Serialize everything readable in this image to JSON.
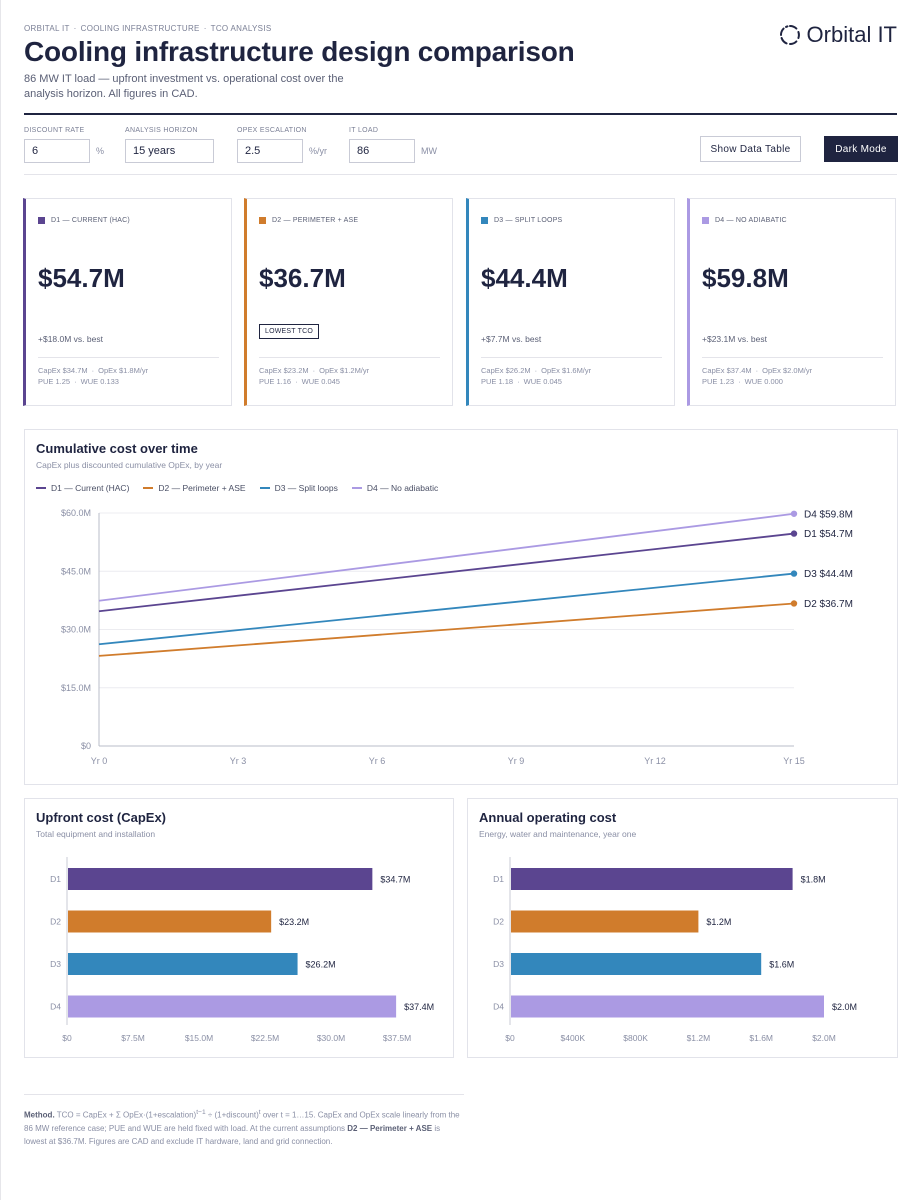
{
  "breadcrumb": [
    "ORBITAL IT",
    "COOLING INFRASTRUCTURE",
    "TCO ANALYSIS"
  ],
  "brand": {
    "name": "Orbital IT",
    "icon": "orbit-ring-icon"
  },
  "title": "Cooling infrastructure design comparison",
  "subtitle": "86 MW IT load — upfront investment vs. operational cost over the analysis horizon. All figures in CAD.",
  "controls": {
    "discount": {
      "label": "DISCOUNT RATE",
      "value": "6",
      "unit": "%"
    },
    "horizon": {
      "label": "ANALYSIS HORIZON",
      "value": "15 years",
      "unit": ""
    },
    "escalation": {
      "label": "OPEX ESCALATION",
      "value": "2.5",
      "unit": "%/yr"
    },
    "load": {
      "label": "IT LOAD",
      "value": "86",
      "unit": "MW"
    }
  },
  "buttons": {
    "data_table": "Show Data Table",
    "dark_mode": "Dark Mode"
  },
  "colors": {
    "d1": "#5b4590",
    "d2": "#d07c2c",
    "d3": "#3387bc",
    "d4": "#ab9ae3"
  },
  "cards": [
    {
      "label": "D1 — CURRENT (HAC)",
      "value": "$54.7M",
      "delta": "+$18.0M vs. best",
      "badge": "",
      "capex": "CapEx $34.7M",
      "opex": "OpEx $1.8M/yr",
      "pue": "PUE 1.25",
      "wue": "WUE 0.133"
    },
    {
      "label": "D2 — PERIMETER + ASE",
      "value": "$36.7M",
      "delta": "",
      "badge": "LOWEST TCO",
      "capex": "CapEx $23.2M",
      "opex": "OpEx $1.2M/yr",
      "pue": "PUE 1.16",
      "wue": "WUE 0.045"
    },
    {
      "label": "D3 — SPLIT LOOPS",
      "value": "$44.4M",
      "delta": "+$7.7M vs. best",
      "badge": "",
      "capex": "CapEx $26.2M",
      "opex": "OpEx $1.6M/yr",
      "pue": "PUE 1.18",
      "wue": "WUE 0.045"
    },
    {
      "label": "D4 — NO ADIABATIC",
      "value": "$59.8M",
      "delta": "+$23.1M vs. best",
      "badge": "",
      "capex": "CapEx $37.4M",
      "opex": "OpEx $2.0M/yr",
      "pue": "PUE 1.23",
      "wue": "WUE 0.000"
    }
  ],
  "cumulative_panel": {
    "title": "Cumulative cost over time",
    "subtitle": "CapEx plus discounted cumulative OpEx, by year"
  },
  "capex_panel": {
    "title": "Upfront cost (CapEx)",
    "subtitle": "Total equipment and installation"
  },
  "opex_panel": {
    "title": "Annual operating cost",
    "subtitle": "Energy, water and maintenance, year one"
  },
  "chart_data": [
    {
      "type": "line",
      "title": "Cumulative cost over time",
      "subtitle": "CapEx plus discounted cumulative OpEx, by year",
      "x": [
        0,
        15
      ],
      "x_ticks": [
        0,
        3,
        6,
        9,
        12,
        15
      ],
      "x_tick_labels": [
        "Yr 0",
        "Yr 3",
        "Yr 6",
        "Yr 9",
        "Yr 12",
        "Yr 15"
      ],
      "y_ticks": [
        0,
        15,
        30,
        45,
        60
      ],
      "y_tick_labels": [
        "$0",
        "$15.0M",
        "$30.0M",
        "$45.0M",
        "$60.0M"
      ],
      "ylim": [
        0,
        60
      ],
      "grid": true,
      "legend": "top-left",
      "series": [
        {
          "key": "d1",
          "name": "D1 — Current (HAC)",
          "values": [
            34.7,
            54.7
          ],
          "end_label": "D1 $54.7M"
        },
        {
          "key": "d2",
          "name": "D2 — Perimeter + ASE",
          "values": [
            23.2,
            36.7
          ],
          "end_label": "D2 $36.7M"
        },
        {
          "key": "d3",
          "name": "D3 — Split loops",
          "values": [
            26.2,
            44.4
          ],
          "end_label": "D3 $44.4M"
        },
        {
          "key": "d4",
          "name": "D4 — No adiabatic",
          "values": [
            37.4,
            59.8
          ],
          "end_label": "D4 $59.8M"
        }
      ]
    },
    {
      "type": "bar",
      "orientation": "horizontal",
      "title": "Upfront cost (CapEx)",
      "categories": [
        "D1",
        "D2",
        "D3",
        "D4"
      ],
      "keys": [
        "d1",
        "d2",
        "d3",
        "d4"
      ],
      "values": [
        34.7,
        23.2,
        26.2,
        37.4
      ],
      "value_labels": [
        "$34.7M",
        "$23.2M",
        "$26.2M",
        "$37.4M"
      ],
      "x_ticks": [
        0,
        7.5,
        15,
        22.5,
        30,
        37.5
      ],
      "x_tick_labels": [
        "$0",
        "$7.5M",
        "$15.0M",
        "$22.5M",
        "$30.0M",
        "$37.5M"
      ],
      "xlim": [
        0,
        37.5
      ]
    },
    {
      "type": "bar",
      "orientation": "horizontal",
      "title": "Annual operating cost",
      "categories": [
        "D1",
        "D2",
        "D3",
        "D4"
      ],
      "keys": [
        "d1",
        "d2",
        "d3",
        "d4"
      ],
      "values": [
        1.8,
        1.2,
        1.6,
        2.0
      ],
      "value_labels": [
        "$1.8M",
        "$1.2M",
        "$1.6M",
        "$2.0M"
      ],
      "x_ticks": [
        0,
        0.4,
        0.8,
        1.2,
        1.6,
        2.0
      ],
      "x_tick_labels": [
        "$0",
        "$400K",
        "$800K",
        "$1.2M",
        "$1.6M",
        "$2.0M"
      ],
      "xlim": [
        0,
        2.0
      ]
    }
  ],
  "footer": {
    "method_label": "Method.",
    "formula_a": "TCO = CapEx + Σ OpEx·(1+escalation)",
    "sup1": "t−1",
    "formula_b": " ÷ (1+discount)",
    "sup2": "t",
    "formula_c": " over t = 1…15. CapEx and OpEx scale linearly from the 86 MW reference case; PUE and WUE are held fixed with load. At the current assumptions ",
    "best_name": "D2 — Perimeter + ASE",
    "formula_d": " is lowest at $36.7M. Figures are CAD and exclude IT hardware, land and grid connection."
  }
}
